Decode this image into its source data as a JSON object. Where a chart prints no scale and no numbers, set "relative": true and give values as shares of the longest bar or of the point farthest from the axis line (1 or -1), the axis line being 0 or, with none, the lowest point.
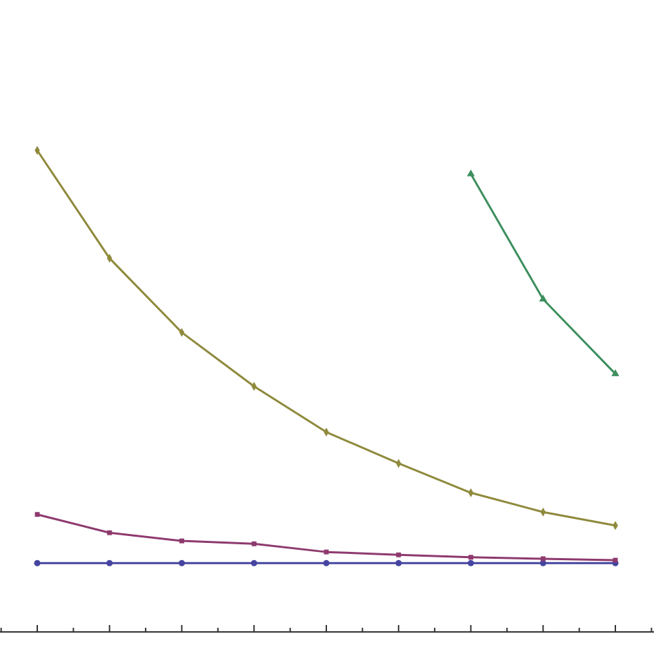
{
  "chart_data": {
    "type": "line",
    "relative": true,
    "categories": [
      null,
      null,
      null,
      null,
      null,
      null,
      null,
      null,
      null
    ],
    "series": [
      {
        "color": "#4545a0",
        "marker": "circle",
        "values": [
          0.143,
          0.143,
          0.143,
          0.143,
          0.143,
          0.143,
          0.143,
          0.143,
          0.143
        ]
      },
      {
        "color": "#8e3a6e",
        "marker": "square",
        "values": [
          0.244,
          0.206,
          0.189,
          0.183,
          0.166,
          0.16,
          0.155,
          0.152,
          0.149
        ]
      },
      {
        "color": "#8f8a3c",
        "marker": "diamond",
        "values": [
          1.0,
          0.776,
          0.622,
          0.51,
          0.415,
          0.35,
          0.289,
          0.249,
          0.221
        ]
      },
      {
        "color": "#3d8f5e",
        "marker": "triangle",
        "values": [
          null,
          null,
          null,
          null,
          null,
          null,
          0.951,
          0.691,
          0.536
        ]
      }
    ],
    "line_style": "solid"
  }
}
